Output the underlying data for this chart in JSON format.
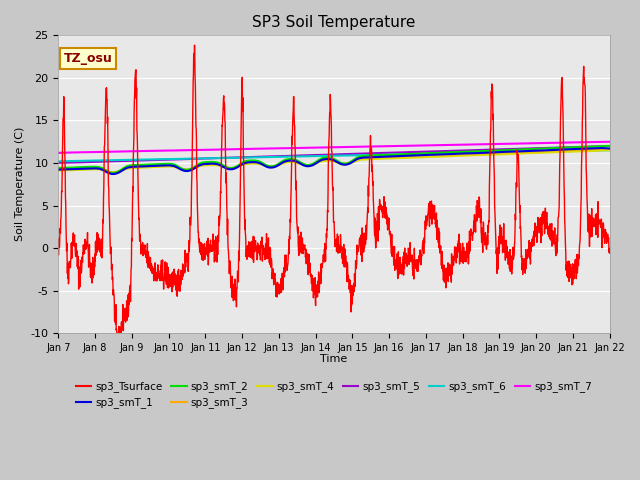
{
  "title": "SP3 Soil Temperature",
  "ylabel": "Soil Temperature (C)",
  "xlabel": "Time",
  "ylim": [
    -10,
    25
  ],
  "xlim": [
    0,
    15
  ],
  "fig_bg_color": "#c8c8c8",
  "plot_bg_color": "#e8e8e8",
  "tz_label": "TZ_osu",
  "x_tick_labels": [
    "Jan 7",
    "Jan 8",
    "Jan 9",
    "Jan 10",
    "Jan 11",
    "Jan 12",
    "Jan 13",
    "Jan 14",
    "Jan 15",
    "Jan 16",
    "Jan 17",
    "Jan 18",
    "Jan 19",
    "Jan 20",
    "Jan 21",
    "Jan 22"
  ],
  "series_colors": {
    "sp3_Tsurface": "#ff0000",
    "sp3_smT_1": "#0000dd",
    "sp3_smT_2": "#00dd00",
    "sp3_smT_3": "#ffaa00",
    "sp3_smT_4": "#dddd00",
    "sp3_smT_5": "#9900cc",
    "sp3_smT_6": "#00cccc",
    "sp3_smT_7": "#ff00ff"
  }
}
